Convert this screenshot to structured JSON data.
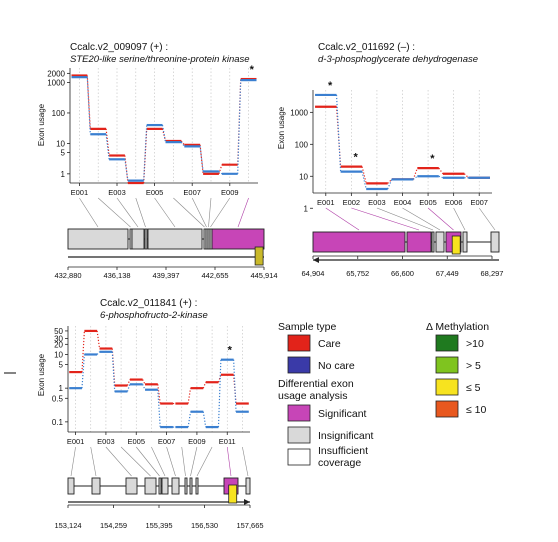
{
  "chart_data": [
    {
      "type": "line",
      "gene_id": "Ccalc.v2_009097 (+) :",
      "title": "STE20-like serine/threonine-protein kinase",
      "ylabel": "Exon usage",
      "y_scale": "log",
      "y_ticks": [
        1,
        5,
        10,
        100,
        1000,
        2000
      ],
      "ylim": [
        0.5,
        3000
      ],
      "exon_ticks": [
        "E001",
        "E003",
        "E005",
        "E007",
        "E009"
      ],
      "n_exons": 10,
      "series": [
        {
          "name": "Care",
          "color": "#e2231a",
          "values": [
            1700,
            30,
            4,
            0.5,
            30,
            12,
            9,
            1.0,
            2.0,
            1300
          ]
        },
        {
          "name": "No care",
          "color": "#3a7fd0",
          "values": [
            1500,
            20,
            3,
            0.6,
            40,
            11,
            8,
            1.2,
            1.0,
            1200
          ]
        }
      ],
      "significant": [
        9
      ],
      "gene_model": {
        "exons": [
          [
            0,
            60
          ],
          [
            62,
            63
          ],
          [
            64,
            76
          ],
          [
            77,
            78
          ],
          [
            80,
            134
          ],
          [
            136,
            137
          ],
          [
            138,
            139
          ],
          [
            140,
            141
          ],
          [
            142,
            143
          ],
          [
            144,
            196
          ]
        ],
        "significant_exons": [
          9
        ]
      },
      "coordinates": [
        "432,880",
        "436,138",
        "439,397",
        "442,655",
        "445,914"
      ],
      "methylation": [
        {
          "position": 0.975,
          "color": "#c9b92a"
        }
      ]
    },
    {
      "type": "line",
      "gene_id": "Ccalc.v2_011692 (–) :",
      "title": "d-3-phosphoglycerate dehydrogenase",
      "ylabel": "Exon usage",
      "y_scale": "log",
      "y_ticks": [
        1,
        10,
        100,
        1000
      ],
      "ylim": [
        3,
        5000
      ],
      "exon_ticks": [
        "E001",
        "E002",
        "E003",
        "E004",
        "E005",
        "E006",
        "E007"
      ],
      "n_exons": 7,
      "series": [
        {
          "name": "Care",
          "color": "#e2231a",
          "values": [
            1500,
            20,
            6,
            8,
            18,
            12,
            9
          ]
        },
        {
          "name": "No care",
          "color": "#3a7fd0",
          "values": [
            3500,
            14,
            4,
            8,
            10,
            9,
            9
          ]
        }
      ],
      "significant": [
        0,
        1,
        4
      ],
      "gene_model": {
        "exons": [
          [
            0,
            92
          ],
          [
            94,
            118
          ],
          [
            119,
            121
          ],
          [
            123,
            131
          ],
          [
            133,
            148
          ],
          [
            150,
            154
          ],
          [
            178,
            186
          ]
        ],
        "significant_exons": [
          0,
          1,
          4
        ]
      },
      "coordinates": [
        "64,904",
        "65,752",
        "66,600",
        "67,449",
        "68,297"
      ],
      "methylation": [
        {
          "position": 0.8,
          "color": "#f7e31f"
        }
      ]
    },
    {
      "type": "line",
      "gene_id": "Ccalc.v2_011841 (+) :",
      "title": "6-phosphofructo-2-kinase",
      "ylabel": "Exon usage",
      "y_scale": "log",
      "y_ticks": [
        0.1,
        0.5,
        1,
        5,
        10,
        20,
        30,
        50
      ],
      "ylim": [
        0.05,
        70
      ],
      "exon_ticks": [
        "E001",
        "E003",
        "E005",
        "E007",
        "E009",
        "E011"
      ],
      "n_exons": 12,
      "series": [
        {
          "name": "Care",
          "color": "#e2231a",
          "values": [
            3,
            50,
            15,
            1.2,
            1.8,
            1.3,
            0.35,
            0.35,
            1.0,
            1.5,
            2.5,
            0.35
          ]
        },
        {
          "name": "No care",
          "color": "#3a7fd0",
          "values": [
            1,
            10,
            12,
            0.8,
            1.3,
            0.9,
            0.07,
            0.07,
            0.2,
            0.07,
            7,
            0.2
          ]
        }
      ],
      "significant": [
        10
      ],
      "gene_model": {
        "exons": [
          [
            0,
            6
          ],
          [
            24,
            32
          ],
          [
            58,
            69
          ],
          [
            77,
            88
          ],
          [
            91,
            92
          ],
          [
            94,
            100
          ],
          [
            104,
            111
          ],
          [
            117,
            118
          ],
          [
            122,
            123
          ],
          [
            128,
            130
          ],
          [
            156,
            170
          ],
          [
            178,
            182
          ]
        ],
        "significant_exons": [
          10
        ]
      },
      "coordinates": [
        "153,124",
        "154,259",
        "155,395",
        "156,530",
        "157,665"
      ],
      "methylation": [
        {
          "position": 0.905,
          "color": "#f7e31f"
        }
      ]
    }
  ],
  "legend": {
    "sample_type_title": "Sample type",
    "sample_types": [
      {
        "label": "Care",
        "color": "#e2231a"
      },
      {
        "label": "No care",
        "color": "#3a3aa8"
      }
    ],
    "deu_title_line1": "Differential exon",
    "deu_title_line2": "usage analysis",
    "deu": [
      {
        "label": "Significant",
        "color": "#c745b7"
      },
      {
        "label": "Insignificant",
        "color": "#d9d9d9"
      },
      {
        "label": "Insufficient",
        "label2": "coverage",
        "color": "#ffffff"
      }
    ],
    "methylation_title": "Δ Methylation",
    "methylation": [
      {
        "label": ">10",
        "color": "#1f7a1f"
      },
      {
        "label": "> 5",
        "color": "#7fc41f"
      },
      {
        "label": "≤ 5",
        "color": "#f7e31f"
      },
      {
        "label": "≤ 10",
        "color": "#e8581f"
      }
    ]
  }
}
